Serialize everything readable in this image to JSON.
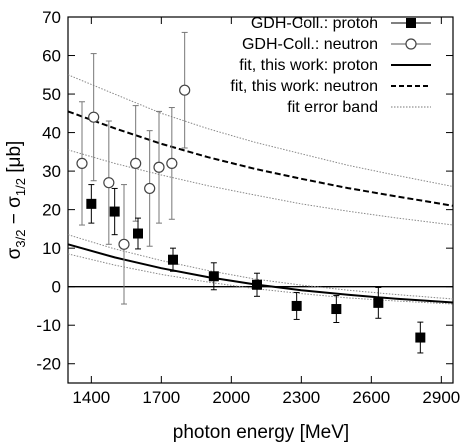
{
  "chart_data": {
    "type": "scatter",
    "title": "",
    "xlabel": "photon energy [MeV]",
    "ylabel_main": "σ",
    "ylabel_sub1": "3/2",
    "ylabel_mid": " − σ",
    "ylabel_sub2": "1/2",
    "ylabel_unit": " [μb]",
    "xlim": [
      1300,
      2950
    ],
    "ylim": [
      -25,
      70
    ],
    "x_ticks": [
      1400,
      1700,
      2000,
      2300,
      2600,
      2900
    ],
    "y_ticks": [
      -20,
      -10,
      0,
      10,
      20,
      30,
      40,
      50,
      60,
      70
    ],
    "grid": false,
    "legend_position": "top-right",
    "legend": [
      {
        "label": "GDH-Coll.:  proton",
        "style": "filled-square"
      },
      {
        "label": "GDH-Coll.:  neutron",
        "style": "open-circle"
      },
      {
        "label": "fit, this work:  proton",
        "style": "solid-line"
      },
      {
        "label": "fit, this work: neutron",
        "style": "dashed-line"
      },
      {
        "label": "fit error band",
        "style": "dotted-line"
      }
    ],
    "series": [
      {
        "name": "GDH-Coll.:  proton",
        "marker": "filled-square",
        "points": [
          {
            "x": 1400,
            "y": 21.5,
            "err": 5
          },
          {
            "x": 1500,
            "y": 19.5,
            "err": 6
          },
          {
            "x": 1600,
            "y": 13.8,
            "err": 4
          },
          {
            "x": 1750,
            "y": 7,
            "err": 3
          },
          {
            "x": 1925,
            "y": 2.7,
            "err": 3.5
          },
          {
            "x": 2110,
            "y": 0.5,
            "err": 3
          },
          {
            "x": 2280,
            "y": -5,
            "err": 3.5
          },
          {
            "x": 2450,
            "y": -5.8,
            "err": 3.5
          },
          {
            "x": 2630,
            "y": -4.2,
            "err": 4
          },
          {
            "x": 2810,
            "y": -13.2,
            "err": 4
          }
        ]
      },
      {
        "name": "GDH-Coll.:  neutron",
        "marker": "open-circle",
        "points": [
          {
            "x": 1360,
            "y": 32,
            "err": 16
          },
          {
            "x": 1410,
            "y": 44,
            "err": 16.5
          },
          {
            "x": 1475,
            "y": 27,
            "err": 16
          },
          {
            "x": 1540,
            "y": 11,
            "err": 15.5
          },
          {
            "x": 1590,
            "y": 32,
            "err": 15
          },
          {
            "x": 1650,
            "y": 25.5,
            "err": 15
          },
          {
            "x": 1690,
            "y": 31,
            "err": 14.5
          },
          {
            "x": 1745,
            "y": 32,
            "err": 14.5
          },
          {
            "x": 1800,
            "y": 51,
            "err": 15
          }
        ]
      }
    ],
    "fits": [
      {
        "name": "fit, this work:  proton",
        "style": "solid",
        "x": [
          1300,
          1500,
          1700,
          1900,
          2100,
          2300,
          2500,
          2700,
          2950
        ],
        "y": [
          11,
          7.6,
          4.8,
          2.5,
          0.6,
          -0.9,
          -2.1,
          -3.1,
          -4.1
        ]
      },
      {
        "name": "fit, this work: neutron",
        "style": "dashed",
        "x": [
          1300,
          1500,
          1700,
          1900,
          2100,
          2300,
          2500,
          2700,
          2950
        ],
        "y": [
          45.5,
          41.1,
          37.1,
          33.6,
          30.6,
          28,
          25.6,
          23.5,
          21
        ]
      },
      {
        "name": "fit error band",
        "style": "dotted",
        "x": [
          1300,
          1500,
          1700,
          1900,
          2100,
          2300,
          2500,
          2700,
          2950
        ],
        "y": [
          55,
          50,
          45,
          41,
          37.5,
          34.5,
          31.5,
          29,
          26
        ]
      },
      {
        "name": "fit error band",
        "style": "dotted",
        "x": [
          1300,
          1500,
          1700,
          1900,
          2100,
          2300,
          2500,
          2700,
          2950
        ],
        "y": [
          35.5,
          32,
          29,
          26.2,
          23.8,
          21.5,
          19.6,
          17.9,
          16
        ]
      },
      {
        "name": "fit error band",
        "style": "dotted",
        "x": [
          1300,
          1500,
          1700,
          1900,
          2100,
          2300,
          2500,
          2700,
          2950
        ],
        "y": [
          8.5,
          5.6,
          3.2,
          1.2,
          -0.5,
          -1.8,
          -2.9,
          -3.7,
          -4.5
        ]
      },
      {
        "name": "fit error band",
        "style": "dotted",
        "x": [
          1300,
          1500,
          1700,
          1900,
          2100,
          2300,
          2500,
          2700,
          2950
        ],
        "y": [
          13.5,
          9.8,
          6.8,
          4.2,
          2,
          0.4,
          -0.9,
          -2,
          -3.2
        ]
      }
    ],
    "zero_line": 0
  }
}
